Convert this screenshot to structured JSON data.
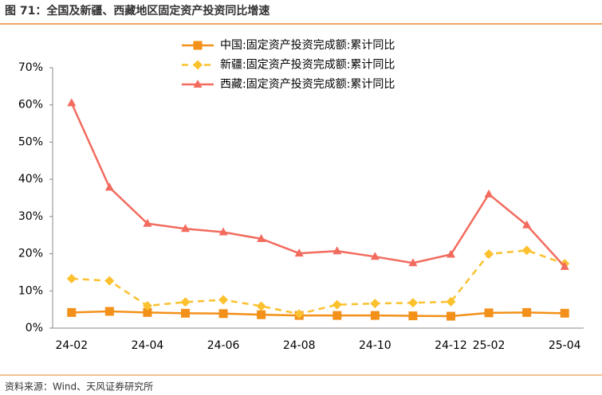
{
  "header": {
    "title": "图 71：全国及新疆、西藏地区固定资产投资同比增速"
  },
  "chart_data": {
    "type": "line",
    "categories": [
      "24-02",
      null,
      "24-04",
      null,
      "24-06",
      null,
      "24-08",
      null,
      "24-10",
      null,
      "24-12",
      "25-02",
      null,
      "25-04"
    ],
    "series": [
      {
        "name": "中国:固定资产投资完成额:累计同比",
        "color": "#f39019",
        "marker": "square",
        "dashed": false,
        "values": [
          4.2,
          4.5,
          4.2,
          4.0,
          3.9,
          3.6,
          3.4,
          3.4,
          3.4,
          3.3,
          3.2,
          4.1,
          4.2,
          4.0
        ]
      },
      {
        "name": "新疆:固定资产投资完成额:累计同比",
        "color": "#fbc12e",
        "marker": "diamond",
        "dashed": true,
        "values": [
          13.3,
          12.7,
          6.0,
          7.0,
          7.6,
          5.9,
          3.8,
          6.3,
          6.6,
          6.8,
          7.1,
          19.9,
          20.9,
          17.3
        ]
      },
      {
        "name": "西藏:固定资产投资完成额:累计同比",
        "color": "#f26b5e",
        "marker": "triangle",
        "dashed": false,
        "values": [
          60.5,
          37.8,
          28.1,
          26.7,
          25.8,
          24.0,
          20.1,
          20.7,
          19.2,
          17.5,
          19.8,
          36.0,
          27.7,
          16.5
        ]
      }
    ],
    "ylim": [
      0,
      70
    ],
    "yticks": [
      {
        "value": 0,
        "label": "0%"
      },
      {
        "value": 10,
        "label": "10%"
      },
      {
        "value": 20,
        "label": "20%"
      },
      {
        "value": 30,
        "label": "30%"
      },
      {
        "value": 40,
        "label": "40%"
      },
      {
        "value": 50,
        "label": "50%"
      },
      {
        "value": 60,
        "label": "60%"
      },
      {
        "value": 70,
        "label": "70%"
      }
    ],
    "grid": false
  },
  "footer": {
    "source": "资料来源：Wind、天风证券研究所"
  }
}
